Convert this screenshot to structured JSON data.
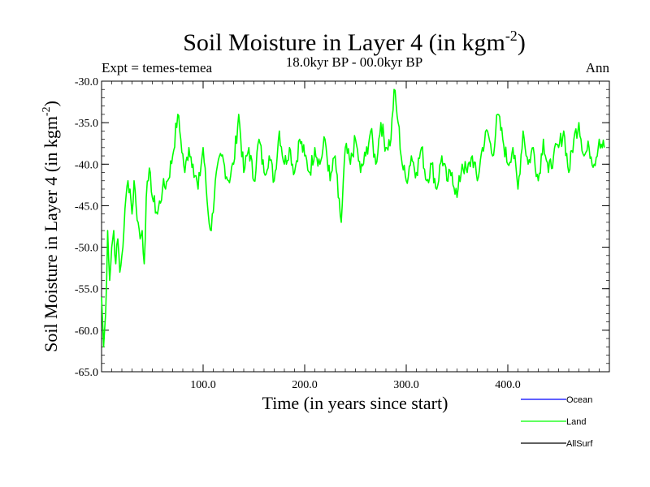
{
  "chart_data": {
    "type": "line",
    "title": "Soil Moisture in Layer 4 (in kgm",
    "title_superscript": "-2",
    "title_close": ")",
    "subtitle_left": "Expt = temes-temea",
    "subtitle_center": "18.0kyr BP - 00.0kyr BP",
    "subtitle_right": "Ann",
    "xlabel": "Time (in years since start)",
    "ylabel": "Soil Moisture in Layer 4 (in kgm",
    "ylabel_superscript": "-2",
    "ylabel_close": ")",
    "xlim": [
      0,
      500
    ],
    "ylim": [
      -65,
      -30
    ],
    "xticks": [
      100,
      200,
      300,
      400
    ],
    "xtick_labels": [
      "100.0",
      "200.0",
      "300.0",
      "400.0"
    ],
    "yticks": [
      -65,
      -60,
      -55,
      -50,
      -45,
      -40,
      -35,
      -30
    ],
    "ytick_labels": [
      "-65.0",
      "-60.0",
      "-55.0",
      "-50.0",
      "-45.0",
      "-40.0",
      "-35.0",
      "-30.0"
    ],
    "legend": [
      {
        "name": "Ocean",
        "color": "#0000ff"
      },
      {
        "name": "Land",
        "color": "#00ff00"
      },
      {
        "name": "AllSurf",
        "color": "#000000"
      }
    ],
    "series": [
      {
        "name": "Land",
        "color": "#00ff00",
        "x": [
          0,
          2,
          4,
          6,
          8,
          10,
          12,
          14,
          16,
          18,
          20,
          22,
          24,
          26,
          28,
          30,
          32,
          34,
          36,
          38,
          40,
          42,
          44,
          46,
          48,
          50,
          55,
          60,
          65,
          70,
          75,
          78,
          82,
          86,
          90,
          95,
          100,
          105,
          108,
          112,
          118,
          125,
          130,
          135,
          140,
          145,
          150,
          155,
          160,
          165,
          170,
          175,
          180,
          185,
          190,
          195,
          200,
          205,
          210,
          215,
          220,
          225,
          230,
          233,
          236,
          240,
          245,
          250,
          255,
          260,
          265,
          270,
          275,
          280,
          285,
          288,
          292,
          296,
          300,
          305,
          310,
          315,
          320,
          325,
          330,
          335,
          340,
          345,
          350,
          355,
          360,
          365,
          370,
          375,
          380,
          385,
          390,
          395,
          400,
          405,
          410,
          415,
          420,
          425,
          430,
          435,
          440,
          445,
          450,
          455,
          460,
          465,
          470,
          475,
          480,
          485,
          490,
          495
        ],
        "values": [
          -56,
          -62,
          -58,
          -48,
          -54,
          -50,
          -48,
          -52,
          -49,
          -53,
          -51,
          -48,
          -44,
          -42,
          -43,
          -46,
          -42,
          -45,
          -47,
          -49,
          -48,
          -52,
          -44,
          -42,
          -41,
          -44,
          -46,
          -43,
          -42,
          -39,
          -34,
          -37,
          -41,
          -38,
          -40,
          -43,
          -38,
          -46,
          -48,
          -42,
          -39,
          -42,
          -40,
          -34,
          -41,
          -38,
          -42,
          -37,
          -41,
          -39,
          -42,
          -36,
          -40,
          -38,
          -41,
          -37,
          -39,
          -41,
          -38,
          -40,
          -37,
          -42,
          -39,
          -44,
          -47,
          -38,
          -40,
          -37,
          -41,
          -39,
          -36,
          -40,
          -35,
          -38,
          -37,
          -31,
          -35,
          -40,
          -42,
          -39,
          -41,
          -38,
          -42,
          -40,
          -43,
          -39,
          -42,
          -41,
          -44,
          -40,
          -41,
          -39,
          -42,
          -38,
          -36,
          -39,
          -34,
          -37,
          -40,
          -38,
          -43,
          -36,
          -40,
          -38,
          -42,
          -37,
          -41,
          -39,
          -38,
          -36,
          -41,
          -37,
          -35,
          -39,
          -38,
          -40,
          -37,
          -38
        ]
      }
    ]
  }
}
